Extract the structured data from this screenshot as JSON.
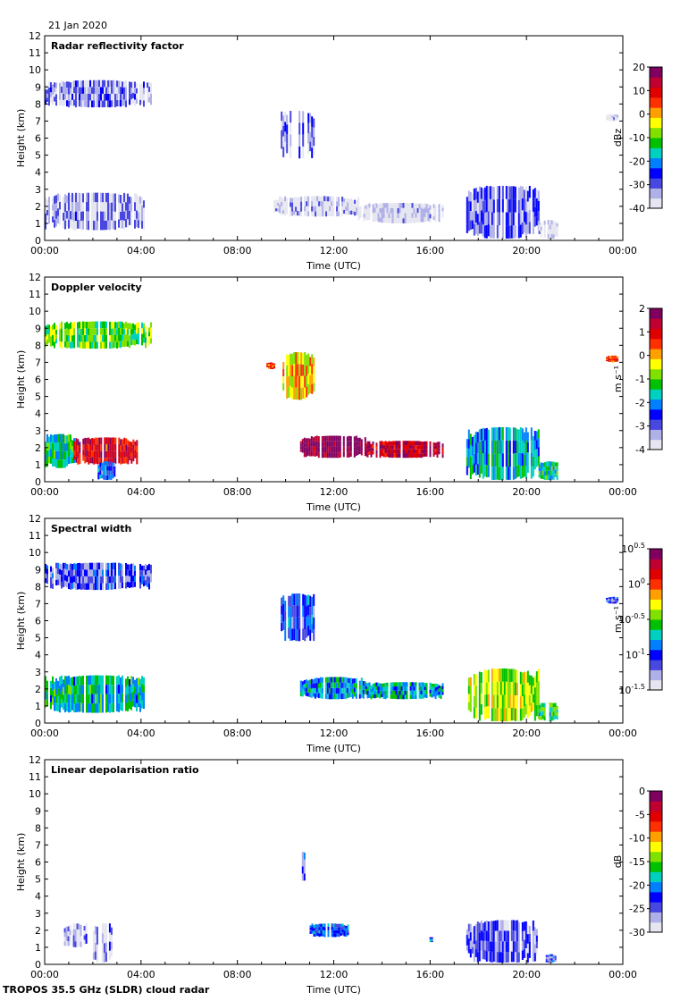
{
  "date": "21 Jan 2020",
  "footer": "TROPOS 35.5 GHz (SLDR) cloud radar",
  "chart_data": [
    {
      "type": "heatmap",
      "title": "Radar reflectivity factor",
      "xlabel": "Time (UTC)",
      "ylabel": "Height (km)",
      "xticks": [
        "00:00",
        "04:00",
        "08:00",
        "12:00",
        "16:00",
        "20:00",
        "00:00"
      ],
      "xlim_hours": [
        0,
        24
      ],
      "ylim_km": [
        0,
        12
      ],
      "yticks": [
        0,
        1,
        2,
        3,
        4,
        5,
        6,
        7,
        8,
        9,
        10,
        11,
        12
      ],
      "colorbar": {
        "label": "dBz",
        "ticks": [
          "20",
          "10",
          "0",
          "-10",
          "-20",
          "-30",
          "-40"
        ],
        "range": [
          -40,
          20
        ],
        "colors": [
          "#e6e6f0",
          "#b0b0e8",
          "#4848e0",
          "#0000ff",
          "#0080ff",
          "#00d0c0",
          "#00c000",
          "#80e000",
          "#ffff00",
          "#ffa000",
          "#ff3000",
          "#e00000",
          "#c00030",
          "#800060"
        ]
      },
      "features": [
        {
          "t0": 0.0,
          "t1": 4.4,
          "h0": 7.8,
          "h1": 9.4,
          "value": -33
        },
        {
          "t0": 0.0,
          "t1": 4.2,
          "h0": 0.6,
          "h1": 2.8,
          "value": -34
        },
        {
          "t0": 9.8,
          "t1": 11.2,
          "h0": 4.8,
          "h1": 7.6,
          "value": -32
        },
        {
          "t0": 9.5,
          "t1": 13.0,
          "h0": 1.4,
          "h1": 2.6,
          "value": -37
        },
        {
          "t0": 13.0,
          "t1": 16.5,
          "h0": 1.0,
          "h1": 2.2,
          "value": -38
        },
        {
          "t0": 17.5,
          "t1": 20.5,
          "h0": 0.1,
          "h1": 3.2,
          "value": -30
        },
        {
          "t0": 20.5,
          "t1": 21.3,
          "h0": 0.1,
          "h1": 1.2,
          "value": -38
        },
        {
          "t0": 23.3,
          "t1": 23.8,
          "h0": 7.0,
          "h1": 7.4,
          "value": -38
        }
      ]
    },
    {
      "type": "heatmap",
      "title": "Doppler velocity",
      "xlabel": "Time (UTC)",
      "ylabel": "Height (km)",
      "xticks": [
        "00:00",
        "04:00",
        "08:00",
        "12:00",
        "16:00",
        "20:00",
        "00:00"
      ],
      "xlim_hours": [
        0,
        24
      ],
      "ylim_km": [
        0,
        12
      ],
      "yticks": [
        0,
        1,
        2,
        3,
        4,
        5,
        6,
        7,
        8,
        9,
        10,
        11,
        12
      ],
      "colorbar": {
        "label": "m s⁻¹",
        "ticks": [
          "2",
          "1",
          "0",
          "-1",
          "-2",
          "-3",
          "-4"
        ],
        "range": [
          -4,
          2
        ],
        "colors": [
          "#e6e6f0",
          "#b0b0e8",
          "#4848e0",
          "#0000ff",
          "#0080ff",
          "#00d0c0",
          "#00c000",
          "#80e000",
          "#ffff00",
          "#ffa000",
          "#ff3000",
          "#e00000",
          "#c00030",
          "#800060"
        ]
      },
      "features": [
        {
          "t0": 0.0,
          "t1": 4.4,
          "h0": 7.8,
          "h1": 9.4,
          "value": -1.0
        },
        {
          "t0": 0.0,
          "t1": 1.2,
          "h0": 0.8,
          "h1": 2.8,
          "value": -1.5
        },
        {
          "t0": 1.2,
          "t1": 3.8,
          "h0": 1.0,
          "h1": 2.6,
          "value": 1.0
        },
        {
          "t0": 2.2,
          "t1": 2.9,
          "h0": 0.1,
          "h1": 1.2,
          "value": -2.5
        },
        {
          "t0": 9.2,
          "t1": 9.5,
          "h0": 6.6,
          "h1": 7.0,
          "value": 0.5
        },
        {
          "t0": 9.8,
          "t1": 11.2,
          "h0": 4.8,
          "h1": 7.6,
          "value": -0.2
        },
        {
          "t0": 10.6,
          "t1": 13.3,
          "h0": 1.4,
          "h1": 2.7,
          "value": 1.8
        },
        {
          "t0": 13.3,
          "t1": 16.5,
          "h0": 1.4,
          "h1": 2.4,
          "value": 1.3
        },
        {
          "t0": 17.5,
          "t1": 20.5,
          "h0": 0.1,
          "h1": 3.2,
          "value": -1.8
        },
        {
          "t0": 20.5,
          "t1": 21.3,
          "h0": 0.1,
          "h1": 1.2,
          "value": -1.5
        },
        {
          "t0": 23.3,
          "t1": 23.8,
          "h0": 7.0,
          "h1": 7.4,
          "value": 0.5
        }
      ]
    },
    {
      "type": "heatmap",
      "title": "Spectral width",
      "xlabel": "Time (UTC)",
      "ylabel": "Height (km)",
      "xticks": [
        "00:00",
        "04:00",
        "08:00",
        "12:00",
        "16:00",
        "20:00",
        "00:00"
      ],
      "xlim_hours": [
        0,
        24
      ],
      "ylim_km": [
        0,
        12
      ],
      "yticks": [
        0,
        1,
        2,
        3,
        4,
        5,
        6,
        7,
        8,
        9,
        10,
        11,
        12
      ],
      "colorbar": {
        "label": "m s⁻¹",
        "ticks": [
          "10^0.5",
          "10^0",
          "10^-0.5",
          "10^-1",
          "10^-1.5"
        ],
        "range": [
          -1.5,
          0.5
        ],
        "colors": [
          "#e6e6f0",
          "#b0b0e8",
          "#4848e0",
          "#0000ff",
          "#0080ff",
          "#00d0c0",
          "#00c000",
          "#80e000",
          "#ffff00",
          "#ffa000",
          "#ff3000",
          "#e00000",
          "#c00030",
          "#800060"
        ]
      },
      "features": [
        {
          "t0": 0.0,
          "t1": 4.4,
          "h0": 7.8,
          "h1": 9.4,
          "value": -1.1
        },
        {
          "t0": 0.0,
          "t1": 4.2,
          "h0": 0.6,
          "h1": 2.8,
          "value": -0.7
        },
        {
          "t0": 9.8,
          "t1": 11.2,
          "h0": 4.8,
          "h1": 7.6,
          "value": -1.0
        },
        {
          "t0": 10.6,
          "t1": 13.3,
          "h0": 1.4,
          "h1": 2.7,
          "value": -0.8
        },
        {
          "t0": 13.3,
          "t1": 16.5,
          "h0": 1.4,
          "h1": 2.4,
          "value": -0.75
        },
        {
          "t0": 17.5,
          "t1": 20.5,
          "h0": 0.1,
          "h1": 3.2,
          "value": -0.4
        },
        {
          "t0": 20.5,
          "t1": 21.3,
          "h0": 0.1,
          "h1": 1.2,
          "value": -0.6
        },
        {
          "t0": 23.3,
          "t1": 23.8,
          "h0": 7.0,
          "h1": 7.4,
          "value": -1.1
        }
      ]
    },
    {
      "type": "heatmap",
      "title": "Linear depolarisation ratio",
      "xlabel": "Time (UTC)",
      "ylabel": "Height (km)",
      "xticks": [
        "00:00",
        "04:00",
        "08:00",
        "12:00",
        "16:00",
        "20:00",
        "00:00"
      ],
      "xlim_hours": [
        0,
        24
      ],
      "ylim_km": [
        0,
        12
      ],
      "yticks": [
        0,
        1,
        2,
        3,
        4,
        5,
        6,
        7,
        8,
        9,
        10,
        11,
        12
      ],
      "colorbar": {
        "label": "dB",
        "ticks": [
          "0",
          "-5",
          "-10",
          "-15",
          "-20",
          "-25",
          "-30"
        ],
        "range": [
          -30,
          0
        ],
        "colors": [
          "#e6e6f0",
          "#b0b0e8",
          "#4848e0",
          "#0000ff",
          "#0080ff",
          "#00d0c0",
          "#00c000",
          "#80e000",
          "#ffff00",
          "#ffa000",
          "#ff3000",
          "#e00000",
          "#c00030",
          "#800060"
        ]
      },
      "features": [
        {
          "t0": 0.8,
          "t1": 1.7,
          "h0": 1.0,
          "h1": 2.4,
          "value": -27
        },
        {
          "t0": 2.0,
          "t1": 2.8,
          "h0": 0.1,
          "h1": 2.4,
          "value": -27
        },
        {
          "t0": 10.6,
          "t1": 10.8,
          "h0": 4.9,
          "h1": 6.6,
          "value": -24
        },
        {
          "t0": 11.0,
          "t1": 12.6,
          "h0": 1.6,
          "h1": 2.4,
          "value": -22
        },
        {
          "t0": 15.9,
          "t1": 16.1,
          "h0": 1.3,
          "h1": 1.6,
          "value": -22
        },
        {
          "t0": 17.5,
          "t1": 20.5,
          "h0": 0.1,
          "h1": 2.6,
          "value": -25
        },
        {
          "t0": 20.8,
          "t1": 21.2,
          "h0": 0.1,
          "h1": 0.6,
          "value": -24
        }
      ]
    }
  ]
}
